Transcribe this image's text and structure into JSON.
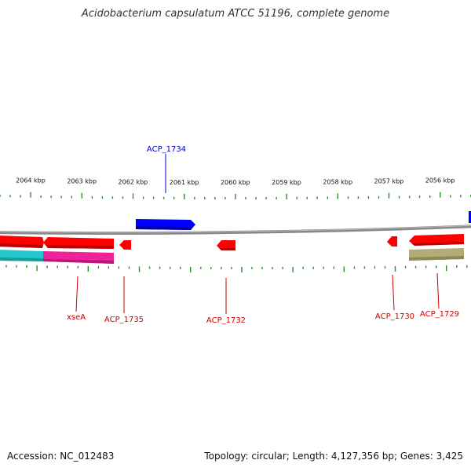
{
  "header": {
    "title": "Acidobacterium capsulatum ATCC 51196, complete genome"
  },
  "footer": {
    "accession": "Accession: NC_012483",
    "summary": "Topology: circular; Length: 4,127,356 bp; Genes: 3,425"
  },
  "scale": {
    "unit": "kbp",
    "labels": [
      "2064 kbp",
      "2063 kbp",
      "2062 kbp",
      "2061 kbp",
      "2060 kbp",
      "2059 kbp",
      "2058 kbp",
      "2057 kbp",
      "2056 kbp"
    ]
  },
  "colors": {
    "forward_gene": "#0000ff",
    "reverse_gene": "#ff0000",
    "reverse_label": "#cc0000",
    "forward_label": "#0000cc",
    "tick": "#2e8b2e",
    "backbone": "#888888",
    "feature_cyan": "#22c8cc",
    "feature_magenta": "#ee2299",
    "feature_olive": "#b3ab78"
  },
  "genes": [
    {
      "label": "ACP_1734",
      "strand": "forward"
    },
    {
      "label": "xseA",
      "strand": "reverse"
    },
    {
      "label": "ACP_1735",
      "strand": "reverse"
    },
    {
      "label": "ACP_1732",
      "strand": "reverse"
    },
    {
      "label": "ACP_1730",
      "strand": "reverse"
    },
    {
      "label": "ACP_1729",
      "strand": "reverse"
    }
  ]
}
